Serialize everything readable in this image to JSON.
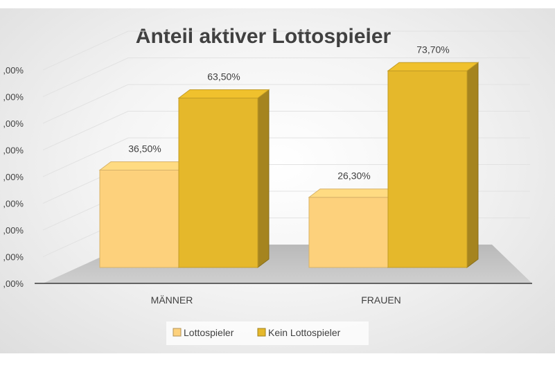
{
  "chart_data": {
    "type": "bar",
    "title": "Anteil aktiver Lottospieler",
    "categories": [
      "MÄNNER",
      "FRAUEN"
    ],
    "series": [
      {
        "name": "Lottospieler",
        "values": [
          36.5,
          26.3
        ],
        "labels": [
          "36,50%",
          "26,30%"
        ],
        "color": "#fdd17c"
      },
      {
        "name": "Kein Lottospieler",
        "values": [
          63.5,
          73.7
        ],
        "labels": [
          "63,50%",
          "73,70%"
        ],
        "color": "#e5b82b"
      }
    ],
    "ylim": [
      0,
      80
    ],
    "yticks": [
      0,
      10,
      20,
      30,
      40,
      50,
      60,
      70,
      80
    ],
    "ytick_labels": [
      ",00%",
      ",00%",
      ",00%",
      ",00%",
      ",00%",
      ",00%",
      ",00%",
      ",00%",
      ",00%"
    ],
    "xlabel": "",
    "ylabel": "",
    "legend_position": "bottom",
    "grid": true
  }
}
